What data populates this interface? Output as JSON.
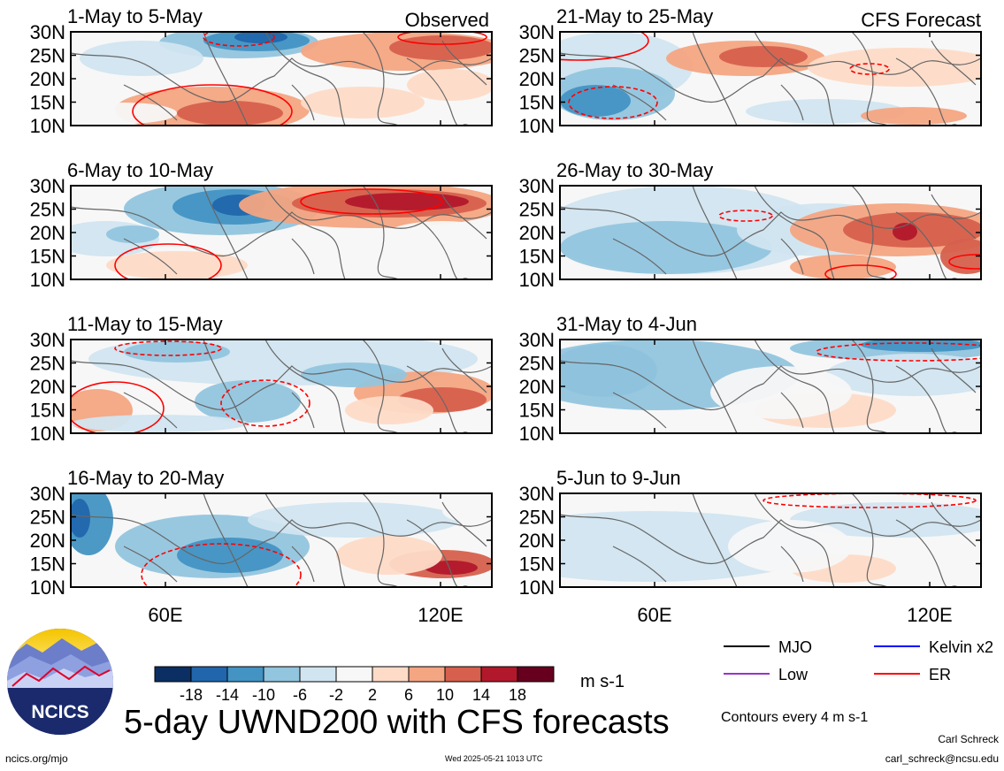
{
  "header": {
    "observed_label": "Observed",
    "forecast_label": "CFS Forecast"
  },
  "panels_left": [
    {
      "period": "1-May to 5-May"
    },
    {
      "period": "6-May to 10-May"
    },
    {
      "period": "11-May to 15-May"
    },
    {
      "period": "16-May to 20-May"
    }
  ],
  "panels_right": [
    {
      "period": "21-May to 25-May"
    },
    {
      "period": "26-May to 30-May"
    },
    {
      "period": "31-May to 4-Jun"
    },
    {
      "period": "5-Jun to 9-Jun"
    }
  ],
  "chart_data": {
    "type": "heatmap",
    "title": "5-day UWND200 with CFS forecasts",
    "units": "m s-1",
    "contour_note": "Contours every 4 m s-1",
    "lat_ticks": [
      "30N",
      "25N",
      "20N",
      "15N",
      "10N"
    ],
    "lat_range": [
      10,
      30
    ],
    "lon_ticks": [
      "60E",
      "120E"
    ],
    "colorbar": {
      "labels": [
        "-18",
        "-14",
        "-10",
        "-6",
        "-2",
        "2",
        "6",
        "10",
        "14",
        "18"
      ],
      "colors": [
        "#0b2f63",
        "#2166ac",
        "#4393c3",
        "#92c5de",
        "#d1e5f0",
        "#f7f7f7",
        "#fddbc7",
        "#f4a582",
        "#d6604d",
        "#b2182b",
        "#67001f"
      ]
    },
    "legend": [
      {
        "label": "MJO",
        "color": "#000000"
      },
      {
        "label": "Kelvin x2",
        "color": "#0000ff"
      },
      {
        "label": "Low",
        "color": "#9932cc"
      },
      {
        "label": "ER",
        "color": "#ff0000"
      }
    ]
  },
  "logo": {
    "text": "NCICS"
  },
  "footer": {
    "site": "ncics.org/mjo",
    "timestamp": "Wed 2025-05-21 1013 UTC",
    "author": "Carl Schreck",
    "email": "carl_schreck@ncsu.edu"
  }
}
